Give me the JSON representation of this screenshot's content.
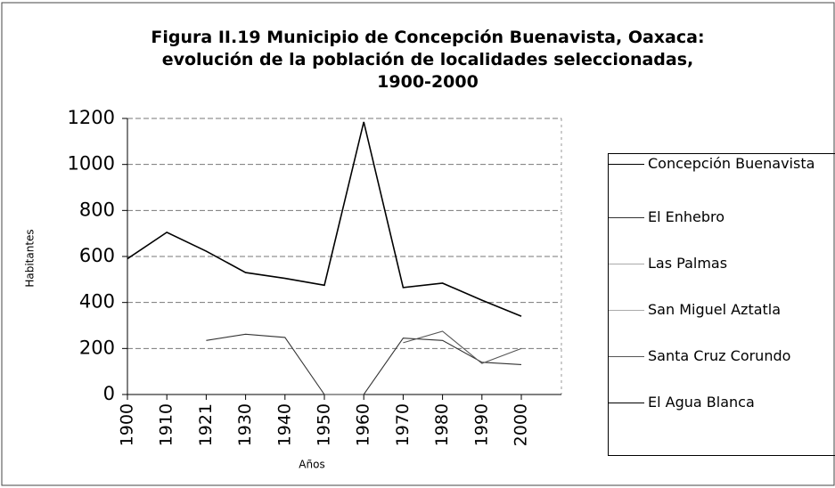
{
  "chart_data": {
    "type": "line",
    "title": "Figura II.19 Municipio de Concepción Buenavista, Oaxaca: evolución de la población de localidades seleccionadas, 1900-2000",
    "x_label": "Años",
    "y_label": "Habitantes",
    "categories": [
      "1900",
      "1910",
      "1921",
      "1930",
      "1940",
      "1950",
      "1960",
      "1970",
      "1980",
      "1990",
      "2000"
    ],
    "series": [
      {
        "name": "Concepción Buenavista",
        "color": "#000000",
        "values": [
          590,
          705,
          623,
          530,
          505,
          475,
          1185,
          465,
          484,
          410,
          340
        ]
      },
      {
        "name": "El Enhebro",
        "color": "#333333",
        "values": [
          null,
          null,
          235,
          262,
          248,
          0,
          0,
          245,
          235,
          140,
          130
        ]
      },
      {
        "name": "Las Palmas",
        "color": "#aaaaaa",
        "values": [
          null,
          null,
          null,
          null,
          null,
          null,
          null,
          null,
          null,
          null,
          null
        ]
      },
      {
        "name": "San Miguel Aztatla",
        "color": "#aaaaaa",
        "values": [
          null,
          null,
          null,
          null,
          null,
          null,
          null,
          null,
          null,
          null,
          null
        ]
      },
      {
        "name": "Santa Cruz Corundo",
        "color": "#555555",
        "values": [
          null,
          null,
          null,
          null,
          null,
          null,
          null,
          225,
          275,
          135,
          200
        ]
      },
      {
        "name": "El Agua Blanca",
        "color": "#000000",
        "values": [
          null,
          null,
          null,
          null,
          null,
          null,
          null,
          null,
          null,
          null,
          null
        ]
      }
    ],
    "ylim": [
      0,
      1200
    ],
    "yticks": [
      0,
      200,
      400,
      600,
      800,
      1000,
      1200
    ],
    "grid": true
  }
}
